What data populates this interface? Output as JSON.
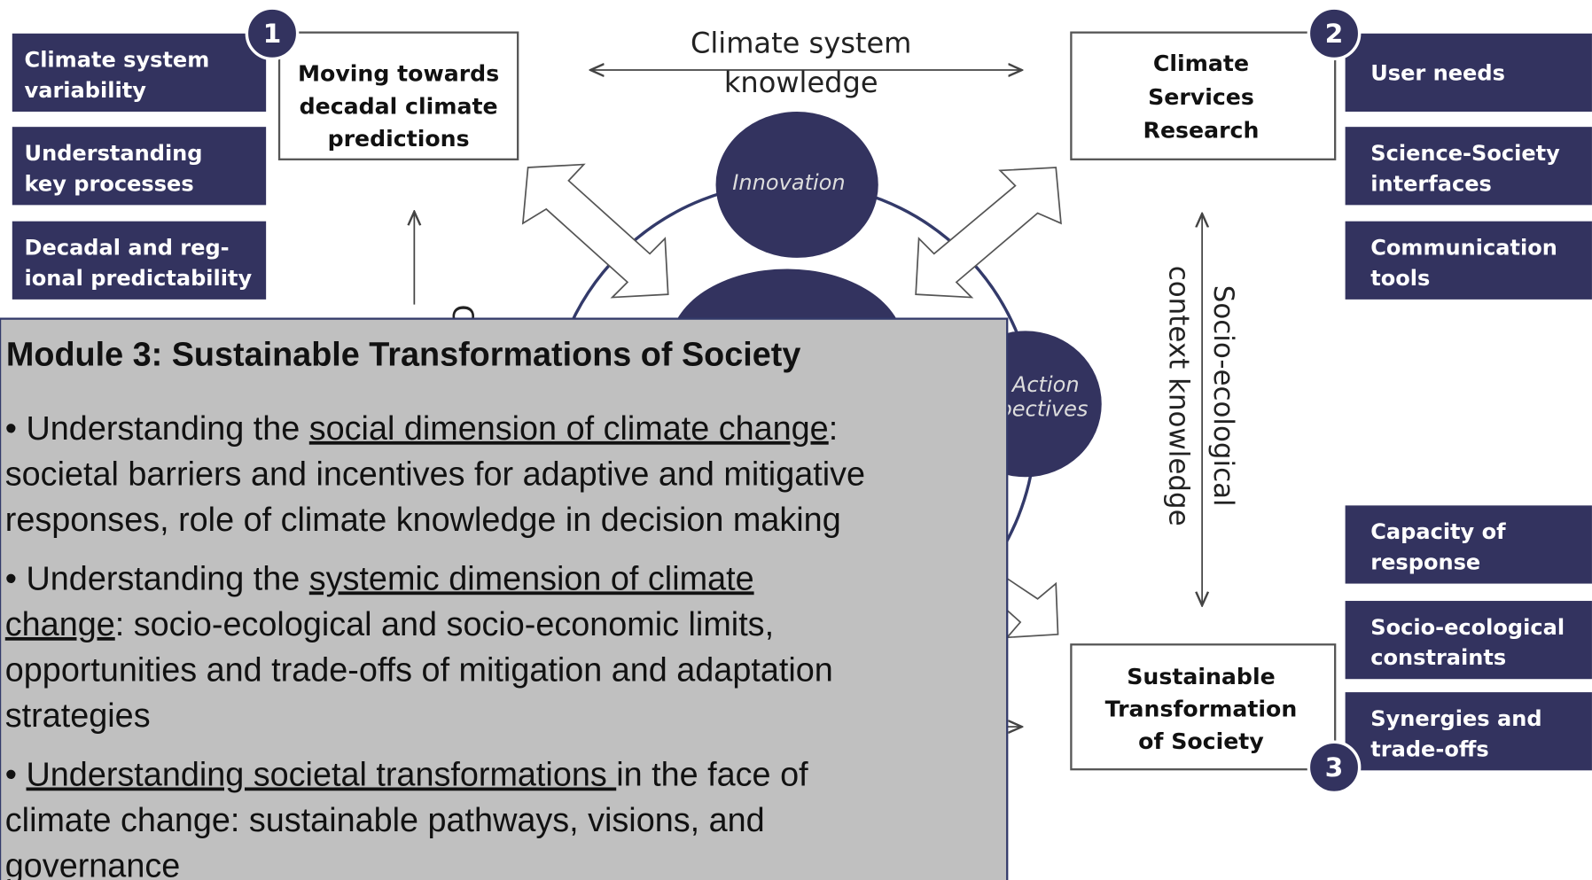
{
  "header": {
    "lines": [
      "Climate system",
      "knowledge"
    ]
  },
  "modules": [
    {
      "number": "1",
      "lines": [
        "Moving towards",
        "decadal climate",
        "predictions"
      ]
    },
    {
      "number": "2",
      "lines": [
        "Climate",
        "Services",
        "Research"
      ]
    },
    {
      "number": "3",
      "lines": [
        "Sustainable",
        "Transformation",
        "of Society"
      ]
    }
  ],
  "left_boxes": [
    [
      "Climate system",
      "variability"
    ],
    [
      "Understanding",
      "key processes"
    ],
    [
      "Decadal and reg-",
      "ional predictability"
    ]
  ],
  "right_boxes": [
    [
      "User needs"
    ],
    [
      "Science-Society",
      "interfaces"
    ],
    [
      "Communication",
      "tools"
    ],
    [
      "Capacity of",
      "response"
    ],
    [
      "Socio-ecological",
      "constraints"
    ],
    [
      "Synergies and",
      "trade-offs"
    ]
  ],
  "circles": {
    "innovation": "Innovation",
    "action": [
      "Action",
      "Perspectives"
    ]
  },
  "vertical_left": "Cl",
  "vertical_right": [
    "Socio-ecological",
    "context knowledge"
  ],
  "overlay": {
    "title": "Module 3: Sustainable Transformations of Society",
    "bullets": [
      [
        [
          {
            "text": "• Understanding the "
          },
          {
            "text": "social dimension of climate change",
            "underline": true
          },
          {
            "text": ":"
          }
        ],
        [
          {
            "text": "societal barriers and incentives for adaptive and mitigative"
          }
        ],
        [
          {
            "text": "responses, role of climate knowledge in decision making"
          }
        ]
      ],
      [
        [
          {
            "text": "• Understanding the "
          },
          {
            "text": "systemic dimension of climate",
            "underline": true
          }
        ],
        [
          {
            "text": "change",
            "underline": true
          },
          {
            "text": ": socio-ecological and socio-economic limits,"
          }
        ],
        [
          {
            "text": "opportunities and trade-offs of mitigation and adaptation"
          }
        ],
        [
          {
            "text": "strategies"
          }
        ]
      ],
      [
        [
          {
            "text": "• "
          },
          {
            "text": "Understanding societal transformations ",
            "underline": true
          },
          {
            "text": "in the face of"
          }
        ],
        [
          {
            "text": "climate change: sustainable pathways, visions, and"
          }
        ],
        [
          {
            "text": "governance"
          }
        ]
      ]
    ]
  }
}
